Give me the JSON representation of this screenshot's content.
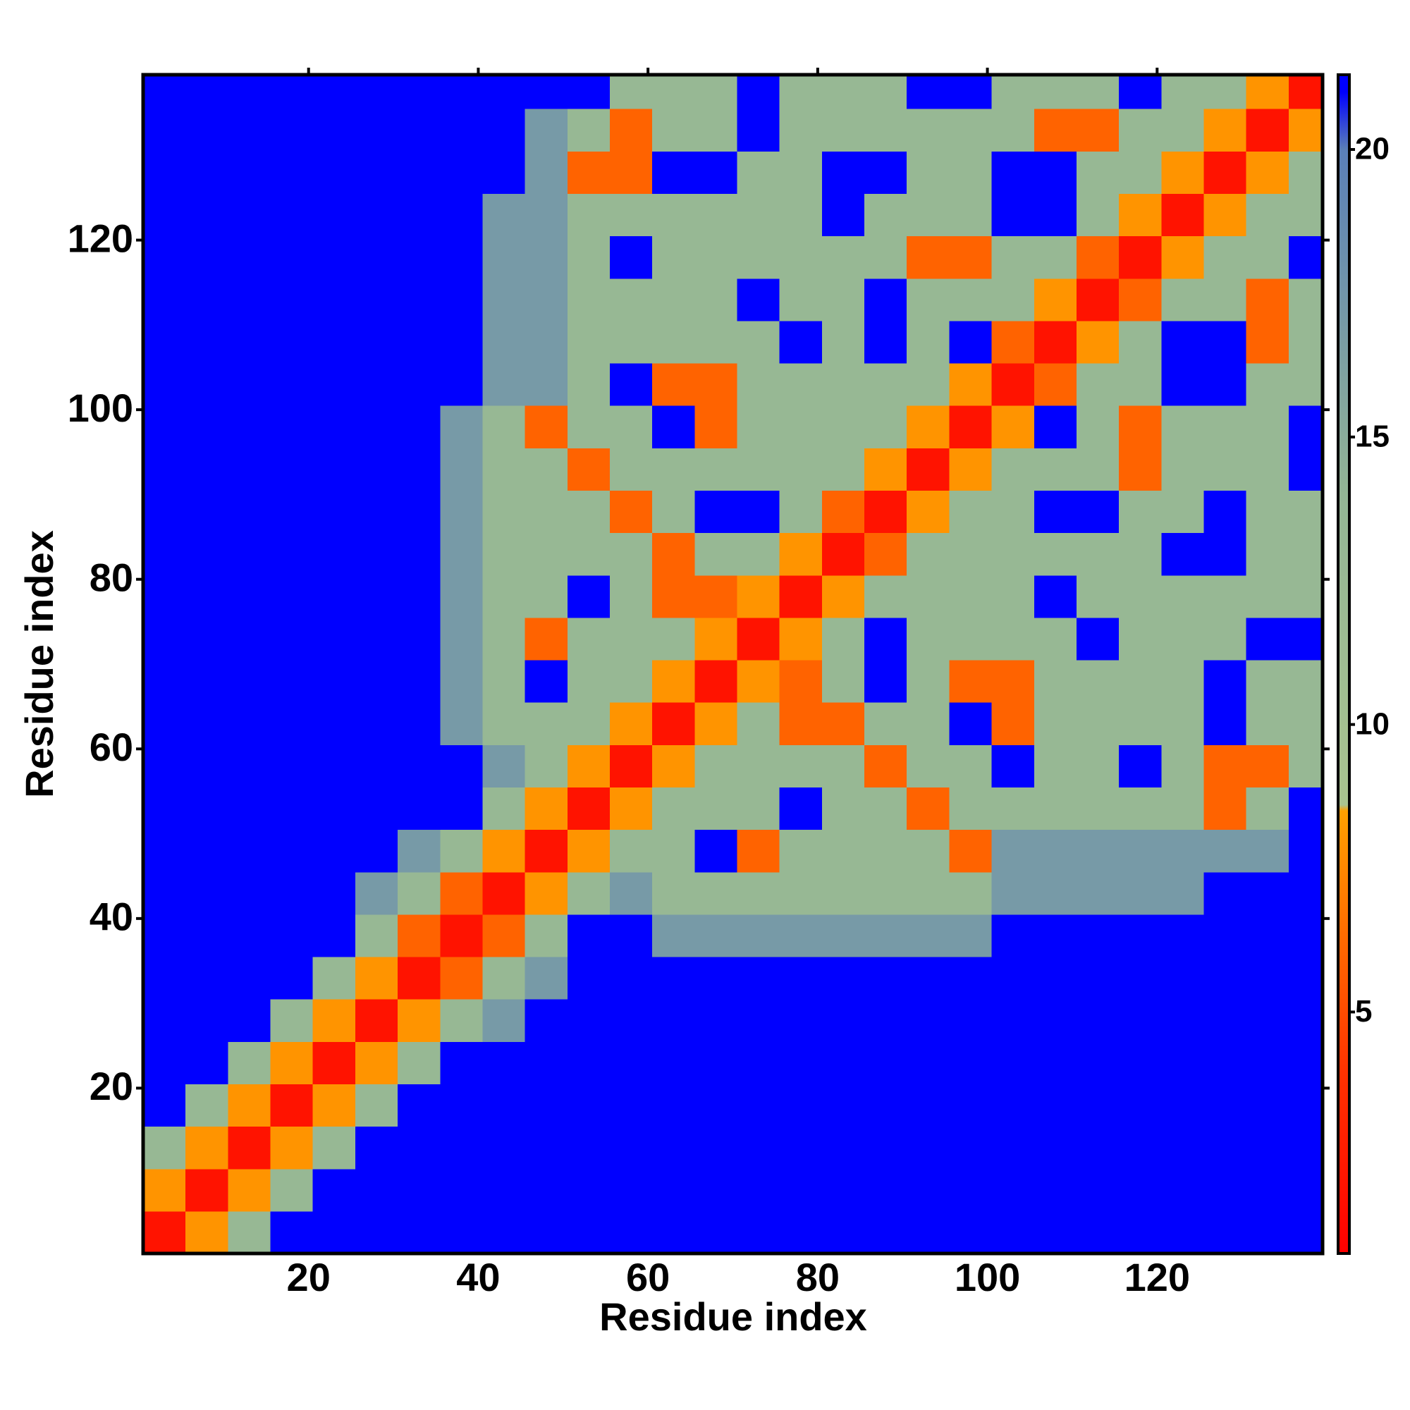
{
  "chart_data": {
    "type": "heatmap",
    "x_label": "Residue index",
    "y_label": "Residue index",
    "xbins": [
      0.5,
      5.5,
      10.5,
      15.5,
      20.5,
      25.5,
      30.5,
      35.5,
      40.5,
      45.5,
      50.5,
      55.5,
      60.5,
      65.5,
      70.5,
      75.5,
      80.5,
      85.5,
      90.5,
      95.5,
      100.5,
      105.5,
      110.5,
      115.5,
      120.5,
      125.5,
      130.5,
      135.5,
      139.5
    ],
    "ybins": [
      0.5,
      5.5,
      10.5,
      15.5,
      20.5,
      25.5,
      30.5,
      35.5,
      40.5,
      45.5,
      50.5,
      55.5,
      60.5,
      65.5,
      70.5,
      75.5,
      80.5,
      85.5,
      90.5,
      95.5,
      100.5,
      105.5,
      110.5,
      115.5,
      120.5,
      125.5,
      130.5,
      135.5,
      139.5
    ],
    "xlim": [
      0.5,
      139.5
    ],
    "ylim": [
      0.5,
      139.5
    ],
    "xticks": [
      20,
      40,
      60,
      80,
      100,
      120
    ],
    "yticks": [
      20,
      40,
      60,
      80,
      100,
      120
    ],
    "zlim": [
      0.8,
      21.3
    ],
    "zticks": [
      5,
      10,
      15,
      20
    ],
    "colorscale": [
      {
        "value": 0.8,
        "color": "#ff0000"
      },
      {
        "value": 4,
        "color": "#ff3300"
      },
      {
        "value": 8.5,
        "color": "#ffa000"
      },
      {
        "value": 8.6,
        "color": "#a9c38f"
      },
      {
        "value": 14,
        "color": "#93b595"
      },
      {
        "value": 20,
        "color": "#5a7fb8"
      },
      {
        "value": 21,
        "color": "#0000ff"
      }
    ],
    "z": [
      [
        2,
        8,
        13,
        21,
        21,
        21,
        21,
        21,
        21,
        21,
        21,
        21,
        21,
        21,
        21,
        21,
        21,
        21,
        21,
        21,
        21,
        21,
        21,
        21,
        21,
        21,
        21,
        21
      ],
      [
        8,
        2,
        8,
        13,
        21,
        21,
        21,
        21,
        21,
        21,
        21,
        21,
        21,
        21,
        21,
        21,
        21,
        21,
        21,
        21,
        21,
        21,
        21,
        21,
        21,
        21,
        21,
        21
      ],
      [
        13,
        8,
        2,
        8,
        13,
        21,
        21,
        21,
        21,
        21,
        21,
        21,
        21,
        21,
        21,
        21,
        21,
        21,
        21,
        21,
        21,
        21,
        21,
        21,
        21,
        21,
        21,
        21
      ],
      [
        21,
        13,
        8,
        2,
        8,
        13,
        21,
        21,
        21,
        21,
        21,
        21,
        21,
        21,
        21,
        21,
        21,
        21,
        21,
        21,
        21,
        21,
        21,
        21,
        21,
        21,
        21,
        21
      ],
      [
        21,
        21,
        13,
        8,
        2,
        8,
        13,
        21,
        21,
        21,
        21,
        21,
        21,
        21,
        21,
        21,
        21,
        21,
        21,
        21,
        21,
        21,
        21,
        21,
        21,
        21,
        21,
        21
      ],
      [
        21,
        21,
        21,
        13,
        8,
        2,
        8,
        13,
        17,
        21,
        21,
        21,
        21,
        21,
        21,
        21,
        21,
        21,
        21,
        21,
        21,
        21,
        21,
        21,
        21,
        21,
        21,
        21
      ],
      [
        21,
        21,
        21,
        21,
        13,
        8,
        2,
        6,
        13,
        17,
        21,
        21,
        21,
        21,
        21,
        21,
        21,
        21,
        21,
        21,
        21,
        21,
        21,
        21,
        21,
        21,
        21,
        21
      ],
      [
        21,
        21,
        21,
        21,
        21,
        13,
        6,
        2,
        6,
        13,
        21,
        21,
        17,
        17,
        17,
        17,
        17,
        17,
        17,
        17,
        21,
        21,
        21,
        21,
        21,
        21,
        21,
        21
      ],
      [
        21,
        21,
        21,
        21,
        21,
        17,
        13,
        6,
        2,
        8,
        13,
        17,
        13,
        13,
        13,
        13,
        13,
        13,
        13,
        13,
        17,
        17,
        17,
        17,
        17,
        21,
        21,
        21
      ],
      [
        21,
        21,
        21,
        21,
        21,
        21,
        17,
        13,
        8,
        2,
        8,
        13,
        13,
        21,
        6,
        13,
        13,
        13,
        13,
        6,
        17,
        17,
        17,
        17,
        17,
        17,
        17,
        21
      ],
      [
        21,
        21,
        21,
        21,
        21,
        21,
        21,
        21,
        13,
        8,
        2,
        8,
        13,
        13,
        13,
        21,
        13,
        13,
        6,
        13,
        13,
        13,
        13,
        13,
        13,
        6,
        13,
        21
      ],
      [
        21,
        21,
        21,
        21,
        21,
        21,
        21,
        21,
        17,
        13,
        8,
        2,
        8,
        13,
        13,
        13,
        13,
        6,
        13,
        13,
        21,
        13,
        13,
        21,
        13,
        6,
        6,
        13
      ],
      [
        21,
        21,
        21,
        21,
        21,
        21,
        21,
        17,
        13,
        13,
        13,
        8,
        2,
        8,
        13,
        6,
        6,
        13,
        13,
        21,
        6,
        13,
        13,
        13,
        13,
        21,
        13,
        13
      ],
      [
        21,
        21,
        21,
        21,
        21,
        21,
        21,
        17,
        13,
        21,
        13,
        13,
        8,
        2,
        8,
        6,
        13,
        21,
        13,
        6,
        6,
        13,
        13,
        13,
        13,
        21,
        13,
        13
      ],
      [
        21,
        21,
        21,
        21,
        21,
        21,
        21,
        17,
        13,
        6,
        13,
        13,
        13,
        8,
        2,
        8,
        13,
        21,
        13,
        13,
        13,
        13,
        21,
        13,
        13,
        13,
        21,
        21
      ],
      [
        21,
        21,
        21,
        21,
        21,
        21,
        21,
        17,
        13,
        13,
        21,
        13,
        6,
        6,
        8,
        2,
        8,
        13,
        13,
        13,
        13,
        21,
        13,
        13,
        13,
        13,
        13,
        13
      ],
      [
        21,
        21,
        21,
        21,
        21,
        21,
        21,
        17,
        13,
        13,
        13,
        13,
        6,
        13,
        13,
        8,
        2,
        6,
        13,
        13,
        13,
        13,
        13,
        13,
        21,
        21,
        13,
        13
      ],
      [
        21,
        21,
        21,
        21,
        21,
        21,
        21,
        17,
        13,
        13,
        13,
        6,
        13,
        21,
        21,
        13,
        6,
        2,
        8,
        13,
        13,
        21,
        21,
        13,
        13,
        21,
        13,
        13
      ],
      [
        21,
        21,
        21,
        21,
        21,
        21,
        21,
        17,
        13,
        13,
        6,
        13,
        13,
        13,
        13,
        13,
        13,
        8,
        2,
        8,
        13,
        13,
        13,
        6,
        13,
        13,
        13,
        21
      ],
      [
        21,
        21,
        21,
        21,
        21,
        21,
        21,
        17,
        13,
        6,
        13,
        13,
        21,
        6,
        13,
        13,
        13,
        13,
        8,
        2,
        8,
        21,
        13,
        6,
        13,
        13,
        13,
        21
      ],
      [
        21,
        21,
        21,
        21,
        21,
        21,
        21,
        21,
        17,
        17,
        13,
        21,
        6,
        6,
        13,
        13,
        13,
        13,
        13,
        8,
        2,
        6,
        13,
        13,
        21,
        21,
        13,
        13
      ],
      [
        21,
        21,
        21,
        21,
        21,
        21,
        21,
        21,
        17,
        17,
        13,
        13,
        13,
        13,
        13,
        21,
        13,
        21,
        13,
        21,
        6,
        2,
        8,
        13,
        21,
        21,
        6,
        13
      ],
      [
        21,
        21,
        21,
        21,
        21,
        21,
        21,
        21,
        17,
        17,
        13,
        13,
        13,
        13,
        21,
        13,
        13,
        21,
        13,
        13,
        13,
        8,
        2,
        6,
        13,
        13,
        6,
        13
      ],
      [
        21,
        21,
        21,
        21,
        21,
        21,
        21,
        21,
        17,
        17,
        13,
        21,
        13,
        13,
        13,
        13,
        13,
        13,
        6,
        6,
        13,
        13,
        6,
        2,
        8,
        13,
        13,
        21
      ],
      [
        21,
        21,
        21,
        21,
        21,
        21,
        21,
        21,
        17,
        17,
        13,
        13,
        13,
        13,
        13,
        13,
        21,
        13,
        13,
        13,
        21,
        21,
        13,
        8,
        2,
        8,
        13,
        13
      ],
      [
        21,
        21,
        21,
        21,
        21,
        21,
        21,
        21,
        21,
        17,
        6,
        6,
        21,
        21,
        13,
        13,
        21,
        21,
        13,
        13,
        21,
        21,
        13,
        13,
        8,
        2,
        8,
        13
      ],
      [
        21,
        21,
        21,
        21,
        21,
        21,
        21,
        21,
        21,
        17,
        13,
        6,
        13,
        13,
        21,
        13,
        13,
        13,
        13,
        13,
        13,
        6,
        6,
        13,
        13,
        8,
        2,
        8
      ],
      [
        21,
        21,
        21,
        21,
        21,
        21,
        21,
        21,
        21,
        21,
        21,
        13,
        13,
        13,
        21,
        13,
        13,
        13,
        21,
        21,
        13,
        13,
        13,
        21,
        13,
        13,
        8,
        2
      ]
    ]
  }
}
